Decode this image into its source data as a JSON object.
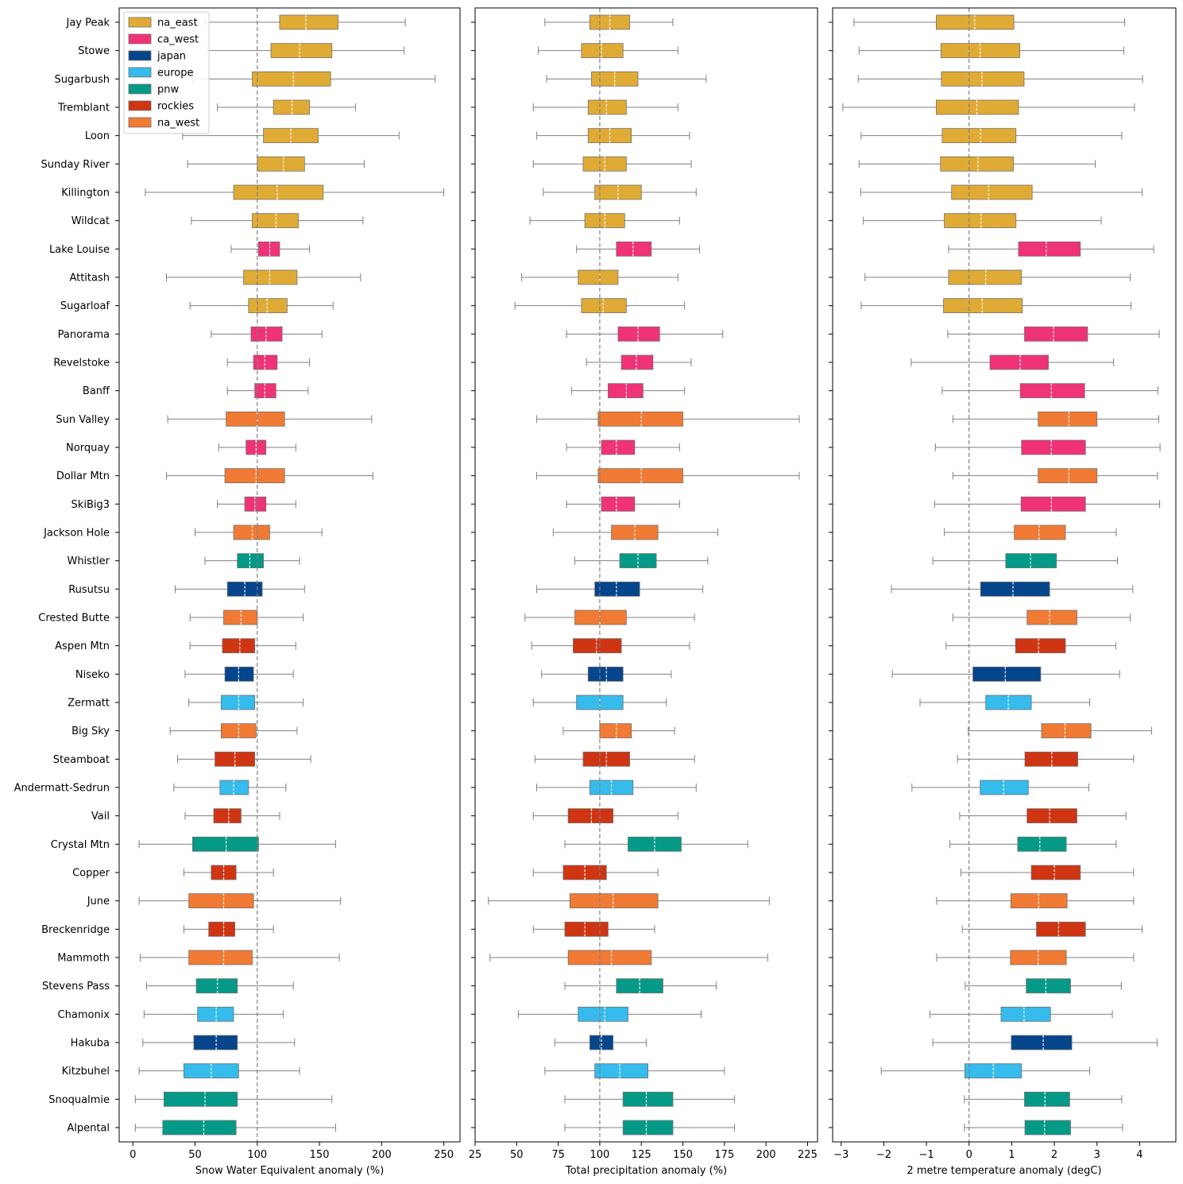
{
  "region_colors": {
    "na_east": "#e0ab35",
    "ca_west": "#f03277",
    "japan": "#04458b",
    "europe": "#35bbec",
    "pnw": "#049a87",
    "rockies": "#cf3513",
    "na_west": "#f17a34"
  },
  "legend": {
    "placement": "top-left",
    "entries": [
      "na_east",
      "ca_west",
      "japan",
      "europe",
      "pnw",
      "rockies",
      "na_west"
    ]
  },
  "chart_data": [
    {
      "type": "boxplot-horizontal",
      "xlabel": "Snow Water Equivalent anomaly (%)",
      "xlim": [
        -11,
        263
      ],
      "xticks": [
        0,
        50,
        100,
        150,
        200,
        250
      ],
      "reference_line": 100,
      "categories": [
        "Jay Peak",
        "Stowe",
        "Sugarbush",
        "Tremblant",
        "Loon",
        "Sunday River",
        "Killington",
        "Wildcat",
        "Lake Louise",
        "Attitash",
        "Sugarloaf",
        "Panorama",
        "Revelstoke",
        "Banff",
        "Sun Valley",
        "Norquay",
        "Dollar Mtn",
        "SkiBig3",
        "Jackson Hole",
        "Whistler",
        "Rusutsu",
        "Crested Butte",
        "Aspen Mtn",
        "Niseko",
        "Zermatt",
        "Big Sky",
        "Steamboat",
        "Andermatt-Sedrun",
        "Vail",
        "Crystal Mtn",
        "Copper",
        "June",
        "Breckenridge",
        "Mammoth",
        "Stevens Pass",
        "Chamonix",
        "Hakuba",
        "Kitzbuhel",
        "Snoqualmie",
        "Alpental"
      ],
      "regions": [
        "na_east",
        "na_east",
        "na_east",
        "na_east",
        "na_east",
        "na_east",
        "na_east",
        "na_east",
        "ca_west",
        "na_east",
        "na_east",
        "ca_west",
        "ca_west",
        "ca_west",
        "na_west",
        "ca_west",
        "na_west",
        "ca_west",
        "na_west",
        "pnw",
        "japan",
        "na_west",
        "rockies",
        "japan",
        "europe",
        "na_west",
        "rockies",
        "europe",
        "rockies",
        "pnw",
        "rockies",
        "na_west",
        "rockies",
        "na_west",
        "pnw",
        "europe",
        "japan",
        "europe",
        "pnw",
        "pnw"
      ],
      "boxes": [
        {
          "whislo": 58,
          "q1": 118,
          "med": 139,
          "q3": 165,
          "whishi": 219
        },
        {
          "whislo": 60,
          "q1": 111,
          "med": 134,
          "q3": 160,
          "whishi": 218
        },
        {
          "whislo": 48,
          "q1": 96,
          "med": 129,
          "q3": 159,
          "whishi": 243
        },
        {
          "whislo": 68,
          "q1": 113,
          "med": 128,
          "q3": 142,
          "whishi": 179
        },
        {
          "whislo": 40,
          "q1": 105,
          "med": 127,
          "q3": 149,
          "whishi": 214
        },
        {
          "whislo": 44,
          "q1": 100,
          "med": 121,
          "q3": 138,
          "whishi": 186
        },
        {
          "whislo": 10,
          "q1": 81,
          "med": 116,
          "q3": 153,
          "whishi": 250
        },
        {
          "whislo": 47,
          "q1": 96,
          "med": 115,
          "q3": 133,
          "whishi": 185
        },
        {
          "whislo": 79,
          "q1": 101,
          "med": 110,
          "q3": 118,
          "whishi": 142
        },
        {
          "whislo": 27,
          "q1": 89,
          "med": 110,
          "q3": 132,
          "whishi": 183
        },
        {
          "whislo": 46,
          "q1": 93,
          "med": 108,
          "q3": 124,
          "whishi": 161
        },
        {
          "whislo": 63,
          "q1": 95,
          "med": 107,
          "q3": 120,
          "whishi": 152
        },
        {
          "whislo": 76,
          "q1": 97,
          "med": 106,
          "q3": 116,
          "whishi": 142
        },
        {
          "whislo": 76,
          "q1": 98,
          "med": 106,
          "q3": 115,
          "whishi": 141
        },
        {
          "whislo": 28,
          "q1": 75,
          "med": 100,
          "q3": 122,
          "whishi": 192
        },
        {
          "whislo": 69,
          "q1": 91,
          "med": 99,
          "q3": 107,
          "whishi": 131
        },
        {
          "whislo": 27,
          "q1": 74,
          "med": 99,
          "q3": 122,
          "whishi": 193
        },
        {
          "whislo": 68,
          "q1": 90,
          "med": 98,
          "q3": 107,
          "whishi": 131
        },
        {
          "whislo": 50,
          "q1": 81,
          "med": 96,
          "q3": 110,
          "whishi": 152
        },
        {
          "whislo": 58,
          "q1": 84,
          "med": 94,
          "q3": 105,
          "whishi": 134
        },
        {
          "whislo": 34,
          "q1": 76,
          "med": 90,
          "q3": 104,
          "whishi": 138
        },
        {
          "whislo": 46,
          "q1": 73,
          "med": 87,
          "q3": 100,
          "whishi": 137
        },
        {
          "whislo": 46,
          "q1": 72,
          "med": 86,
          "q3": 98,
          "whishi": 131
        },
        {
          "whislo": 42,
          "q1": 74,
          "med": 85,
          "q3": 97,
          "whishi": 129
        },
        {
          "whislo": 45,
          "q1": 71,
          "med": 85,
          "q3": 98,
          "whishi": 137
        },
        {
          "whislo": 30,
          "q1": 71,
          "med": 85,
          "q3": 99,
          "whishi": 132
        },
        {
          "whislo": 36,
          "q1": 66,
          "med": 82,
          "q3": 98,
          "whishi": 143
        },
        {
          "whislo": 33,
          "q1": 70,
          "med": 81,
          "q3": 93,
          "whishi": 123
        },
        {
          "whislo": 42,
          "q1": 65,
          "med": 77,
          "q3": 87,
          "whishi": 118
        },
        {
          "whislo": 5,
          "q1": 48,
          "med": 75,
          "q3": 101,
          "whishi": 163
        },
        {
          "whislo": 41,
          "q1": 63,
          "med": 73,
          "q3": 83,
          "whishi": 113
        },
        {
          "whislo": 5,
          "q1": 45,
          "med": 73,
          "q3": 97,
          "whishi": 167
        },
        {
          "whislo": 41,
          "q1": 61,
          "med": 73,
          "q3": 82,
          "whishi": 113
        },
        {
          "whislo": 6,
          "q1": 45,
          "med": 73,
          "q3": 96,
          "whishi": 166
        },
        {
          "whislo": 11,
          "q1": 51,
          "med": 68,
          "q3": 84,
          "whishi": 129
        },
        {
          "whislo": 9,
          "q1": 52,
          "med": 67,
          "q3": 81,
          "whishi": 121
        },
        {
          "whislo": 8,
          "q1": 49,
          "med": 67,
          "q3": 84,
          "whishi": 130
        },
        {
          "whislo": 5,
          "q1": 41,
          "med": 63,
          "q3": 85,
          "whishi": 134
        },
        {
          "whislo": 2,
          "q1": 25,
          "med": 58,
          "q3": 84,
          "whishi": 160
        },
        {
          "whislo": 2,
          "q1": 24,
          "med": 57,
          "q3": 83,
          "whishi": 163
        }
      ]
    },
    {
      "type": "boxplot-horizontal",
      "xlabel": "Total precipitation anomaly (%)",
      "xlim": [
        25,
        231
      ],
      "xticks": [
        25,
        50,
        75,
        100,
        125,
        150,
        175,
        200,
        225
      ],
      "reference_line": 100,
      "boxes": [
        {
          "whislo": 67,
          "q1": 94,
          "med": 106,
          "q3": 118,
          "whishi": 144
        },
        {
          "whislo": 63,
          "q1": 89,
          "med": 101,
          "q3": 114,
          "whishi": 147
        },
        {
          "whislo": 68,
          "q1": 95,
          "med": 109,
          "q3": 123,
          "whishi": 164
        },
        {
          "whislo": 60,
          "q1": 93,
          "med": 104,
          "q3": 116,
          "whishi": 147
        },
        {
          "whislo": 62,
          "q1": 93,
          "med": 106,
          "q3": 119,
          "whishi": 154
        },
        {
          "whislo": 60,
          "q1": 90,
          "med": 103,
          "q3": 116,
          "whishi": 155
        },
        {
          "whislo": 66,
          "q1": 97,
          "med": 111,
          "q3": 125,
          "whishi": 158
        },
        {
          "whislo": 58,
          "q1": 91,
          "med": 103,
          "q3": 115,
          "whishi": 148
        },
        {
          "whislo": 86,
          "q1": 110,
          "med": 120,
          "q3": 131,
          "whishi": 160
        },
        {
          "whislo": 53,
          "q1": 87,
          "med": 100,
          "q3": 111,
          "whishi": 147
        },
        {
          "whislo": 49,
          "q1": 89,
          "med": 102,
          "q3": 116,
          "whishi": 151
        },
        {
          "whislo": 80,
          "q1": 111,
          "med": 123,
          "q3": 136,
          "whishi": 174
        },
        {
          "whislo": 92,
          "q1": 113,
          "med": 122,
          "q3": 132,
          "whishi": 155
        },
        {
          "whislo": 83,
          "q1": 105,
          "med": 116,
          "q3": 126,
          "whishi": 151
        },
        {
          "whislo": 62,
          "q1": 99,
          "med": 125,
          "q3": 150,
          "whishi": 220
        },
        {
          "whislo": 80,
          "q1": 101,
          "med": 110,
          "q3": 121,
          "whishi": 148
        },
        {
          "whislo": 62,
          "q1": 99,
          "med": 125,
          "q3": 150,
          "whishi": 220
        },
        {
          "whislo": 80,
          "q1": 101,
          "med": 110,
          "q3": 121,
          "whishi": 148
        },
        {
          "whislo": 72,
          "q1": 107,
          "med": 121,
          "q3": 135,
          "whishi": 171
        },
        {
          "whislo": 85,
          "q1": 112,
          "med": 123,
          "q3": 134,
          "whishi": 165
        },
        {
          "whislo": 62,
          "q1": 97,
          "med": 110,
          "q3": 124,
          "whishi": 162
        },
        {
          "whislo": 55,
          "q1": 85,
          "med": 100,
          "q3": 116,
          "whishi": 157
        },
        {
          "whislo": 59,
          "q1": 84,
          "med": 98,
          "q3": 113,
          "whishi": 154
        },
        {
          "whislo": 65,
          "q1": 93,
          "med": 104,
          "q3": 114,
          "whishi": 143
        },
        {
          "whislo": 60,
          "q1": 86,
          "med": 100,
          "q3": 114,
          "whishi": 140
        },
        {
          "whislo": 78,
          "q1": 100,
          "med": 110,
          "q3": 119,
          "whishi": 145
        },
        {
          "whislo": 61,
          "q1": 90,
          "med": 104,
          "q3": 118,
          "whishi": 157
        },
        {
          "whislo": 62,
          "q1": 94,
          "med": 107,
          "q3": 120,
          "whishi": 158
        },
        {
          "whislo": 60,
          "q1": 81,
          "med": 95,
          "q3": 108,
          "whishi": 147
        },
        {
          "whislo": 79,
          "q1": 117,
          "med": 133,
          "q3": 149,
          "whishi": 189
        },
        {
          "whislo": 60,
          "q1": 78,
          "med": 91,
          "q3": 104,
          "whishi": 135
        },
        {
          "whislo": 33,
          "q1": 82,
          "med": 108,
          "q3": 135,
          "whishi": 202
        },
        {
          "whislo": 60,
          "q1": 79,
          "med": 91,
          "q3": 105,
          "whishi": 133
        },
        {
          "whislo": 34,
          "q1": 81,
          "med": 107,
          "q3": 131,
          "whishi": 201
        },
        {
          "whislo": 79,
          "q1": 110,
          "med": 124,
          "q3": 138,
          "whishi": 170
        },
        {
          "whislo": 51,
          "q1": 87,
          "med": 103,
          "q3": 117,
          "whishi": 161
        },
        {
          "whislo": 73,
          "q1": 94,
          "med": 101,
          "q3": 108,
          "whishi": 128
        },
        {
          "whislo": 67,
          "q1": 97,
          "med": 112,
          "q3": 129,
          "whishi": 175
        },
        {
          "whislo": 79,
          "q1": 114,
          "med": 128,
          "q3": 144,
          "whishi": 181
        },
        {
          "whislo": 79,
          "q1": 114,
          "med": 128,
          "q3": 144,
          "whishi": 181
        }
      ]
    },
    {
      "type": "boxplot-horizontal",
      "xlabel": "2 metre temperature anomaly (degC)",
      "xlim": [
        -3.2,
        4.85
      ],
      "xticks": [
        -3,
        -2,
        -1,
        0,
        1,
        2,
        3,
        4
      ],
      "tick_labels": [
        "−3",
        "−2",
        "−1",
        "0",
        "1",
        "2",
        "3",
        "4"
      ],
      "reference_line": 0,
      "boxes": [
        {
          "whislo": -2.7,
          "q1": -0.77,
          "med": 0.13,
          "q3": 1.05,
          "whishi": 3.65
        },
        {
          "whislo": -2.58,
          "q1": -0.66,
          "med": 0.26,
          "q3": 1.19,
          "whishi": 3.63
        },
        {
          "whislo": -2.6,
          "q1": -0.65,
          "med": 0.3,
          "q3": 1.29,
          "whishi": 4.07
        },
        {
          "whislo": -2.96,
          "q1": -0.77,
          "med": 0.18,
          "q3": 1.16,
          "whishi": 3.88
        },
        {
          "whislo": -2.53,
          "q1": -0.63,
          "med": 0.27,
          "q3": 1.1,
          "whishi": 3.58
        },
        {
          "whislo": -2.58,
          "q1": -0.67,
          "med": 0.21,
          "q3": 1.04,
          "whishi": 2.96
        },
        {
          "whislo": -2.54,
          "q1": -0.41,
          "med": 0.46,
          "q3": 1.48,
          "whishi": 4.06
        },
        {
          "whislo": -2.48,
          "q1": -0.58,
          "med": 0.28,
          "q3": 1.1,
          "whishi": 3.1
        },
        {
          "whislo": -0.48,
          "q1": 1.16,
          "med": 1.81,
          "q3": 2.61,
          "whishi": 4.33
        },
        {
          "whislo": -2.44,
          "q1": -0.48,
          "med": 0.39,
          "q3": 1.23,
          "whishi": 3.78
        },
        {
          "whislo": -2.53,
          "q1": -0.6,
          "med": 0.31,
          "q3": 1.25,
          "whishi": 3.8
        },
        {
          "whislo": -0.5,
          "q1": 1.3,
          "med": 1.98,
          "q3": 2.78,
          "whishi": 4.46
        },
        {
          "whislo": -1.36,
          "q1": 0.49,
          "med": 1.2,
          "q3": 1.86,
          "whishi": 3.39
        },
        {
          "whislo": -0.63,
          "q1": 1.2,
          "med": 1.93,
          "q3": 2.71,
          "whishi": 4.43
        },
        {
          "whislo": -0.38,
          "q1": 1.62,
          "med": 2.34,
          "q3": 3.0,
          "whishi": 4.45
        },
        {
          "whislo": -0.79,
          "q1": 1.23,
          "med": 1.93,
          "q3": 2.73,
          "whishi": 4.48
        },
        {
          "whislo": -0.38,
          "q1": 1.62,
          "med": 2.34,
          "q3": 3.0,
          "whishi": 4.42
        },
        {
          "whislo": -0.81,
          "q1": 1.22,
          "med": 1.93,
          "q3": 2.73,
          "whishi": 4.47
        },
        {
          "whislo": -0.58,
          "q1": 1.06,
          "med": 1.64,
          "q3": 2.26,
          "whishi": 3.45
        },
        {
          "whislo": -0.85,
          "q1": 0.86,
          "med": 1.44,
          "q3": 2.05,
          "whishi": 3.48
        },
        {
          "whislo": -1.82,
          "q1": 0.27,
          "med": 1.03,
          "q3": 1.89,
          "whishi": 3.84
        },
        {
          "whislo": -0.38,
          "q1": 1.36,
          "med": 1.89,
          "q3": 2.53,
          "whishi": 3.78
        },
        {
          "whislo": -0.54,
          "q1": 1.09,
          "med": 1.63,
          "q3": 2.26,
          "whishi": 3.44
        },
        {
          "whislo": -1.8,
          "q1": 0.09,
          "med": 0.85,
          "q3": 1.68,
          "whishi": 3.53
        },
        {
          "whislo": -1.15,
          "q1": 0.39,
          "med": 0.92,
          "q3": 1.46,
          "whishi": 2.83
        },
        {
          "whislo": -0.02,
          "q1": 1.7,
          "med": 2.25,
          "q3": 2.86,
          "whishi": 4.28
        },
        {
          "whislo": -0.27,
          "q1": 1.31,
          "med": 1.94,
          "q3": 2.55,
          "whishi": 3.86
        },
        {
          "whislo": -1.34,
          "q1": 0.26,
          "med": 0.81,
          "q3": 1.39,
          "whishi": 2.81
        },
        {
          "whislo": -0.22,
          "q1": 1.36,
          "med": 1.89,
          "q3": 2.53,
          "whishi": 3.68
        },
        {
          "whislo": -0.45,
          "q1": 1.14,
          "med": 1.66,
          "q3": 2.28,
          "whishi": 3.45
        },
        {
          "whislo": -0.19,
          "q1": 1.46,
          "med": 2.0,
          "q3": 2.61,
          "whishi": 3.86
        },
        {
          "whislo": -0.76,
          "q1": 0.98,
          "med": 1.63,
          "q3": 2.3,
          "whishi": 3.86
        },
        {
          "whislo": -0.16,
          "q1": 1.58,
          "med": 2.1,
          "q3": 2.73,
          "whishi": 4.06
        },
        {
          "whislo": -0.76,
          "q1": 0.97,
          "med": 1.62,
          "q3": 2.28,
          "whishi": 3.86
        },
        {
          "whislo": -0.09,
          "q1": 1.34,
          "med": 1.8,
          "q3": 2.38,
          "whishi": 3.57
        },
        {
          "whislo": -0.92,
          "q1": 0.75,
          "med": 1.29,
          "q3": 1.91,
          "whishi": 3.36
        },
        {
          "whislo": -0.85,
          "q1": 0.99,
          "med": 1.74,
          "q3": 2.41,
          "whishi": 4.41
        },
        {
          "whislo": -2.06,
          "q1": -0.1,
          "med": 0.57,
          "q3": 1.23,
          "whishi": 2.83
        },
        {
          "whislo": -0.11,
          "q1": 1.3,
          "med": 1.78,
          "q3": 2.36,
          "whishi": 3.58
        },
        {
          "whislo": -0.11,
          "q1": 1.31,
          "med": 1.77,
          "q3": 2.38,
          "whishi": 3.6
        }
      ]
    }
  ]
}
